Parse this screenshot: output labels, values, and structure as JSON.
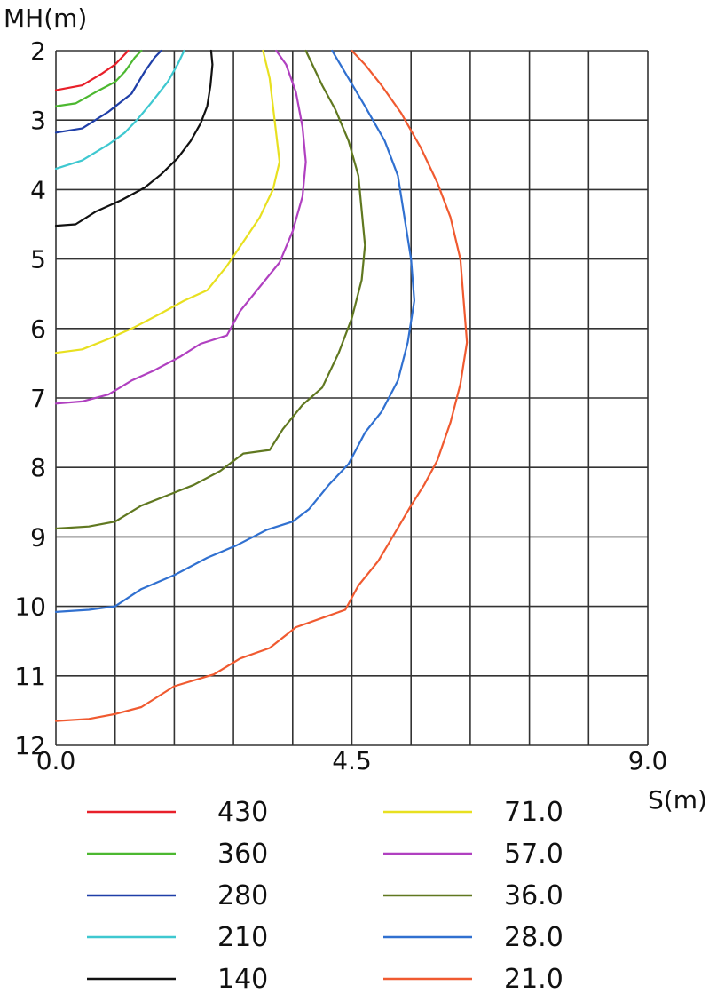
{
  "chart_data": {
    "type": "line",
    "title": "",
    "xlabel": "S(m)",
    "ylabel": "MH(m)",
    "xlim": [
      0,
      9
    ],
    "ylim": [
      2,
      12
    ],
    "y_inverted": true,
    "grid": true,
    "x_ticks": [
      "0.0",
      "4.5",
      "9.0"
    ],
    "y_ticks": [
      "2",
      "3",
      "4",
      "5",
      "6",
      "7",
      "8",
      "9",
      "10",
      "11",
      "12"
    ],
    "legend_position": "bottom",
    "series": [
      {
        "name": "430",
        "color": "#e8202a",
        "points": [
          [
            0.0,
            2.57
          ],
          [
            0.4,
            2.5
          ],
          [
            0.7,
            2.33
          ],
          [
            0.9,
            2.2
          ],
          [
            1.1,
            2.0
          ]
        ]
      },
      {
        "name": "360",
        "color": "#4cb830",
        "points": [
          [
            0.0,
            2.8
          ],
          [
            0.3,
            2.76
          ],
          [
            0.6,
            2.6
          ],
          [
            0.9,
            2.45
          ],
          [
            1.05,
            2.3
          ],
          [
            1.2,
            2.1
          ],
          [
            1.3,
            2.0
          ]
        ]
      },
      {
        "name": "280",
        "color": "#1f3fa8",
        "points": [
          [
            0.0,
            3.18
          ],
          [
            0.4,
            3.12
          ],
          [
            0.8,
            2.88
          ],
          [
            1.0,
            2.73
          ],
          [
            1.15,
            2.62
          ],
          [
            1.35,
            2.3
          ],
          [
            1.5,
            2.1
          ],
          [
            1.6,
            2.0
          ]
        ]
      },
      {
        "name": "210",
        "color": "#3ec8d0",
        "points": [
          [
            0.0,
            3.7
          ],
          [
            0.4,
            3.58
          ],
          [
            0.8,
            3.35
          ],
          [
            1.05,
            3.18
          ],
          [
            1.25,
            2.98
          ],
          [
            1.45,
            2.75
          ],
          [
            1.7,
            2.45
          ],
          [
            1.85,
            2.2
          ],
          [
            1.95,
            2.0
          ]
        ]
      },
      {
        "name": "140",
        "color": "#111111",
        "points": [
          [
            0.0,
            4.52
          ],
          [
            0.3,
            4.5
          ],
          [
            0.6,
            4.32
          ],
          [
            1.0,
            4.15
          ],
          [
            1.35,
            3.97
          ],
          [
            1.6,
            3.78
          ],
          [
            1.85,
            3.55
          ],
          [
            2.05,
            3.3
          ],
          [
            2.2,
            3.05
          ],
          [
            2.3,
            2.8
          ],
          [
            2.35,
            2.5
          ],
          [
            2.38,
            2.2
          ],
          [
            2.36,
            2.0
          ]
        ]
      },
      {
        "name": "71.0",
        "color": "#e8e020",
        "points": [
          [
            0.0,
            6.35
          ],
          [
            0.4,
            6.3
          ],
          [
            0.8,
            6.15
          ],
          [
            1.2,
            5.98
          ],
          [
            1.6,
            5.78
          ],
          [
            1.95,
            5.6
          ],
          [
            2.3,
            5.45
          ],
          [
            2.6,
            5.1
          ],
          [
            2.85,
            4.75
          ],
          [
            3.1,
            4.4
          ],
          [
            3.3,
            4.0
          ],
          [
            3.4,
            3.6
          ],
          [
            3.35,
            3.2
          ],
          [
            3.3,
            2.8
          ],
          [
            3.25,
            2.4
          ],
          [
            3.15,
            2.0
          ]
        ]
      },
      {
        "name": "57.0",
        "color": "#b040c0",
        "points": [
          [
            0.0,
            7.08
          ],
          [
            0.4,
            7.05
          ],
          [
            0.8,
            6.95
          ],
          [
            1.15,
            6.75
          ],
          [
            1.5,
            6.6
          ],
          [
            1.9,
            6.4
          ],
          [
            2.2,
            6.22
          ],
          [
            2.6,
            6.1
          ],
          [
            2.8,
            5.75
          ],
          [
            3.1,
            5.4
          ],
          [
            3.4,
            5.05
          ],
          [
            3.6,
            4.6
          ],
          [
            3.75,
            4.1
          ],
          [
            3.8,
            3.6
          ],
          [
            3.75,
            3.1
          ],
          [
            3.65,
            2.6
          ],
          [
            3.5,
            2.2
          ],
          [
            3.35,
            2.0
          ]
        ]
      },
      {
        "name": "36.0",
        "color": "#607820",
        "points": [
          [
            0.0,
            8.88
          ],
          [
            0.5,
            8.85
          ],
          [
            0.9,
            8.78
          ],
          [
            1.3,
            8.55
          ],
          [
            1.7,
            8.4
          ],
          [
            2.1,
            8.25
          ],
          [
            2.5,
            8.05
          ],
          [
            2.85,
            7.8
          ],
          [
            3.25,
            7.75
          ],
          [
            3.45,
            7.45
          ],
          [
            3.75,
            7.1
          ],
          [
            4.05,
            6.85
          ],
          [
            4.3,
            6.35
          ],
          [
            4.5,
            5.85
          ],
          [
            4.65,
            5.3
          ],
          [
            4.7,
            4.8
          ],
          [
            4.65,
            4.3
          ],
          [
            4.6,
            3.8
          ],
          [
            4.45,
            3.3
          ],
          [
            4.25,
            2.85
          ],
          [
            4.05,
            2.5
          ],
          [
            3.9,
            2.2
          ],
          [
            3.8,
            2.0
          ]
        ]
      },
      {
        "name": "28.0",
        "color": "#3070d0",
        "points": [
          [
            0.0,
            10.08
          ],
          [
            0.5,
            10.05
          ],
          [
            0.9,
            10.0
          ],
          [
            1.3,
            9.75
          ],
          [
            1.8,
            9.55
          ],
          [
            2.3,
            9.3
          ],
          [
            2.75,
            9.12
          ],
          [
            3.2,
            8.9
          ],
          [
            3.6,
            8.78
          ],
          [
            3.85,
            8.6
          ],
          [
            4.15,
            8.25
          ],
          [
            4.45,
            7.95
          ],
          [
            4.7,
            7.5
          ],
          [
            4.95,
            7.2
          ],
          [
            5.2,
            6.75
          ],
          [
            5.35,
            6.2
          ],
          [
            5.45,
            5.6
          ],
          [
            5.4,
            5.0
          ],
          [
            5.3,
            4.4
          ],
          [
            5.2,
            3.8
          ],
          [
            5.0,
            3.3
          ],
          [
            4.7,
            2.8
          ],
          [
            4.45,
            2.4
          ],
          [
            4.2,
            2.0
          ]
        ]
      },
      {
        "name": "21.0",
        "color": "#f05a30",
        "points": [
          [
            0.0,
            11.65
          ],
          [
            0.5,
            11.62
          ],
          [
            0.9,
            11.55
          ],
          [
            1.3,
            11.45
          ],
          [
            1.8,
            11.15
          ],
          [
            2.4,
            10.98
          ],
          [
            2.8,
            10.75
          ],
          [
            3.25,
            10.6
          ],
          [
            3.65,
            10.3
          ],
          [
            4.1,
            10.15
          ],
          [
            4.4,
            10.05
          ],
          [
            4.6,
            9.7
          ],
          [
            4.9,
            9.35
          ],
          [
            5.15,
            8.95
          ],
          [
            5.4,
            8.55
          ],
          [
            5.6,
            8.25
          ],
          [
            5.8,
            7.9
          ],
          [
            6.0,
            7.35
          ],
          [
            6.15,
            6.8
          ],
          [
            6.25,
            6.2
          ],
          [
            6.2,
            5.6
          ],
          [
            6.15,
            5.0
          ],
          [
            6.0,
            4.4
          ],
          [
            5.8,
            3.9
          ],
          [
            5.55,
            3.4
          ],
          [
            5.25,
            2.9
          ],
          [
            4.95,
            2.5
          ],
          [
            4.7,
            2.2
          ],
          [
            4.5,
            2.0
          ]
        ]
      }
    ]
  }
}
